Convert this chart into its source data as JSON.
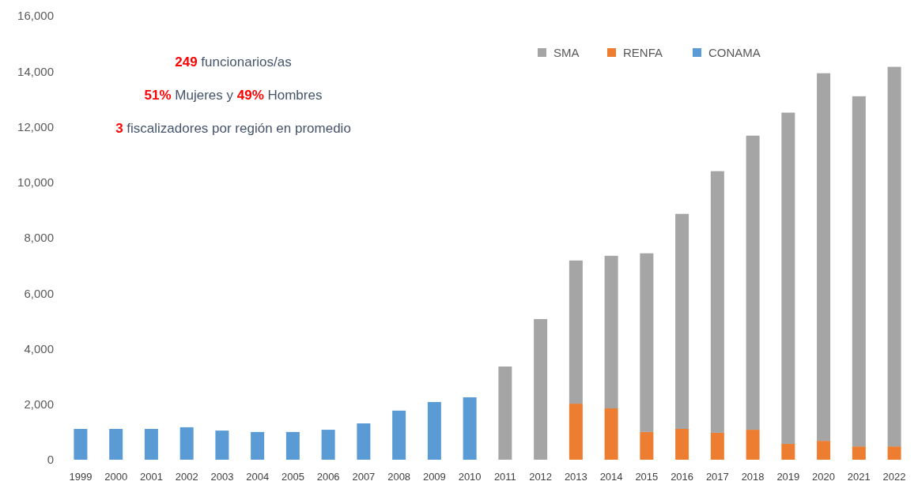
{
  "chart_data": {
    "type": "bar",
    "stacked": true,
    "categories": [
      "1999",
      "2000",
      "2001",
      "2002",
      "2003",
      "2004",
      "2005",
      "2006",
      "2007",
      "2008",
      "2009",
      "2010",
      "2011",
      "2012",
      "2013",
      "2014",
      "2015",
      "2016",
      "2017",
      "2018",
      "2019",
      "2020",
      "2021",
      "2022"
    ],
    "series": [
      {
        "name": "CONAMA",
        "color": "#5b9bd5",
        "values": [
          1110,
          1110,
          1110,
          1170,
          1050,
          1000,
          1000,
          1080,
          1310,
          1770,
          2080,
          2250,
          null,
          null,
          null,
          null,
          null,
          null,
          null,
          null,
          null,
          null,
          null,
          null
        ]
      },
      {
        "name": "RENFA",
        "color": "#ed7d31",
        "values": [
          null,
          null,
          null,
          null,
          null,
          null,
          null,
          null,
          null,
          null,
          null,
          null,
          null,
          null,
          2020,
          1850,
          1000,
          1110,
          970,
          1080,
          570,
          680,
          480,
          480
        ]
      },
      {
        "name": "SMA",
        "color": "#a5a5a5",
        "values": [
          null,
          null,
          null,
          null,
          null,
          null,
          null,
          null,
          null,
          null,
          null,
          null,
          3360,
          5070,
          5160,
          5500,
          6440,
          7750,
          9430,
          10600,
          11940,
          13250,
          12620,
          13680
        ]
      }
    ],
    "ylim": [
      0,
      16000
    ],
    "yticks": [
      {
        "value": 0,
        "label": "0"
      },
      {
        "value": 2000,
        "label": "2,000"
      },
      {
        "value": 4000,
        "label": "4,000"
      },
      {
        "value": 6000,
        "label": "6,000"
      },
      {
        "value": 8000,
        "label": "8,000"
      },
      {
        "value": 10000,
        "label": "10,000"
      },
      {
        "value": 12000,
        "label": "12,000"
      },
      {
        "value": 14000,
        "label": "14,000"
      },
      {
        "value": 16000,
        "label": "16,000"
      }
    ],
    "grid": false,
    "legend": "top right",
    "annotations": [
      "249 funcionarios/as",
      "51% Mujeres  y 49% Hombres",
      "3 fiscalizadores por región en promedio"
    ]
  }
}
